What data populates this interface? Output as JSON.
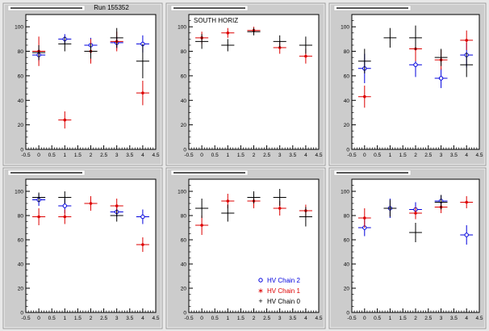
{
  "run_label": "Run 155352",
  "colors": {
    "chain2": "#0000dd",
    "chain1": "#dd0000",
    "chain0": "#000000",
    "pad_background": "#cccccc",
    "frame_background": "#ffffff"
  },
  "legend": {
    "placement": "bottom-right of pad 5",
    "entries": [
      {
        "label": "HV Chain 2",
        "color": "#0000dd",
        "marker": "open-circle"
      },
      {
        "label": "HV Chain 1",
        "color": "#dd0000",
        "marker": "star"
      },
      {
        "label": "HV Chain 0",
        "color": "#000000",
        "marker": "plus"
      }
    ]
  },
  "chart_data": [
    {
      "type": "scatter",
      "title": "",
      "annotation": "",
      "xlim": [
        -0.5,
        4.5
      ],
      "ylim": [
        0,
        110
      ],
      "x_ticks": [
        "-0.5",
        "0",
        "0.5",
        "1",
        "1.5",
        "2",
        "2.5",
        "3",
        "3.5",
        "4",
        "4.5"
      ],
      "y_ticks": [
        "0",
        "20",
        "40",
        "60",
        "80",
        "100"
      ],
      "series": [
        {
          "color": "#0000dd",
          "marker": "open-circle",
          "x": [
            0,
            1,
            2,
            3,
            4
          ],
          "y": [
            77,
            90,
            85,
            87,
            86
          ],
          "yerr": [
            5,
            4,
            6,
            5,
            7
          ]
        },
        {
          "color": "#dd0000",
          "marker": "star",
          "x": [
            0,
            1,
            2,
            3,
            4
          ],
          "y": [
            80,
            24,
            80,
            88,
            46
          ],
          "yerr": [
            12,
            7,
            10,
            8,
            10
          ]
        },
        {
          "color": "#000000",
          "marker": "plus",
          "x": [
            0,
            1,
            2,
            3,
            4
          ],
          "y": [
            79,
            86,
            80,
            91,
            72
          ],
          "yerr": [
            6,
            6,
            6,
            8,
            14
          ]
        }
      ]
    },
    {
      "type": "scatter",
      "title": "",
      "annotation": "SOUTH HORIZ",
      "xlim": [
        -0.5,
        4.5
      ],
      "ylim": [
        0,
        110
      ],
      "x_ticks": [
        "-0.5",
        "0",
        "0.5",
        "1",
        "1.5",
        "2",
        "2.5",
        "3",
        "3.5",
        "4",
        "4.5"
      ],
      "y_ticks": [
        "0",
        "20",
        "40",
        "60",
        "80",
        "100"
      ],
      "series": [
        {
          "color": "#dd0000",
          "marker": "star",
          "x": [
            0,
            1,
            2,
            3,
            4
          ],
          "y": [
            91,
            95,
            97,
            83,
            76
          ],
          "yerr": [
            5,
            4,
            3,
            5,
            6
          ]
        },
        {
          "color": "#000000",
          "marker": "plus",
          "x": [
            0,
            1,
            2,
            3,
            4
          ],
          "y": [
            88,
            85,
            96,
            88,
            85
          ],
          "yerr": [
            6,
            5,
            3,
            5,
            7
          ]
        }
      ]
    },
    {
      "type": "scatter",
      "title": "",
      "annotation": "",
      "xlim": [
        -0.5,
        4.5
      ],
      "ylim": [
        0,
        110
      ],
      "x_ticks": [
        "-0.5",
        "0",
        "0.5",
        "1",
        "1.5",
        "2",
        "2.5",
        "3",
        "3.5",
        "4",
        "4.5"
      ],
      "y_ticks": [
        "0",
        "20",
        "40",
        "60",
        "80",
        "100"
      ],
      "series": [
        {
          "color": "#0000dd",
          "marker": "open-circle",
          "x": [
            0,
            1,
            2,
            3,
            4
          ],
          "y": [
            66,
            null,
            69,
            58,
            77
          ],
          "yerr": [
            12,
            0,
            10,
            8,
            10
          ]
        },
        {
          "color": "#dd0000",
          "marker": "star",
          "x": [
            0,
            1,
            2,
            3,
            4
          ],
          "y": [
            43,
            null,
            82,
            73,
            89
          ],
          "yerr": [
            9,
            0,
            10,
            8,
            8
          ]
        },
        {
          "color": "#000000",
          "marker": "plus",
          "x": [
            0,
            1,
            2,
            3,
            4
          ],
          "y": [
            72,
            91,
            91,
            75,
            69
          ],
          "yerr": [
            10,
            8,
            10,
            7,
            10
          ]
        }
      ]
    },
    {
      "type": "scatter",
      "title": "",
      "annotation": "",
      "xlim": [
        -0.5,
        4.5
      ],
      "ylim": [
        0,
        110
      ],
      "x_ticks": [
        "-0.5",
        "0",
        "0.5",
        "1",
        "1.5",
        "2",
        "2.5",
        "3",
        "3.5",
        "4",
        "4.5"
      ],
      "y_ticks": [
        "0",
        "20",
        "40",
        "60",
        "80",
        "100"
      ],
      "series": [
        {
          "color": "#0000dd",
          "marker": "open-circle",
          "x": [
            0,
            1,
            2,
            3,
            4
          ],
          "y": [
            93,
            88,
            null,
            83,
            79
          ],
          "yerr": [
            5,
            6,
            0,
            4,
            6
          ]
        },
        {
          "color": "#dd0000",
          "marker": "star",
          "x": [
            0,
            1,
            2,
            3,
            4
          ],
          "y": [
            79,
            79,
            90,
            88,
            56
          ],
          "yerr": [
            7,
            6,
            6,
            6,
            6
          ]
        },
        {
          "color": "#000000",
          "marker": "plus",
          "x": [
            0,
            1,
            2,
            3,
            4
          ],
          "y": [
            95,
            95,
            null,
            80,
            null
          ],
          "yerr": [
            4,
            5,
            0,
            5,
            0
          ]
        }
      ]
    },
    {
      "type": "scatter",
      "title": "",
      "annotation": "",
      "xlim": [
        -0.5,
        4.5
      ],
      "ylim": [
        0,
        110
      ],
      "x_ticks": [
        "-0.5",
        "0",
        "0.5",
        "1",
        "1.5",
        "2",
        "2.5",
        "3",
        "3.5",
        "4",
        "4.5"
      ],
      "y_ticks": [
        "0",
        "20",
        "40",
        "60",
        "80",
        "100"
      ],
      "series": [
        {
          "color": "#dd0000",
          "marker": "star",
          "x": [
            0,
            1,
            2,
            3,
            4
          ],
          "y": [
            72,
            92,
            92,
            86,
            84
          ],
          "yerr": [
            8,
            6,
            6,
            6,
            5
          ]
        },
        {
          "color": "#000000",
          "marker": "plus",
          "x": [
            0,
            1,
            2,
            3,
            4
          ],
          "y": [
            86,
            82,
            95,
            95,
            79
          ],
          "yerr": [
            8,
            7,
            5,
            7,
            8
          ]
        }
      ]
    },
    {
      "type": "scatter",
      "title": "",
      "annotation": "",
      "xlim": [
        -0.5,
        4.5
      ],
      "ylim": [
        0,
        110
      ],
      "x_ticks": [
        "-0.5",
        "0",
        "0.5",
        "1",
        "1.5",
        "2",
        "2.5",
        "3",
        "3.5",
        "4",
        "4.5"
      ],
      "y_ticks": [
        "0",
        "20",
        "40",
        "60",
        "80",
        "100"
      ],
      "series": [
        {
          "color": "#0000dd",
          "marker": "open-circle",
          "x": [
            0,
            1,
            2,
            3,
            4
          ],
          "y": [
            70,
            86,
            85,
            92,
            64
          ],
          "yerr": [
            7,
            8,
            6,
            5,
            8
          ]
        },
        {
          "color": "#dd0000",
          "marker": "star",
          "x": [
            0,
            1,
            2,
            3,
            4
          ],
          "y": [
            78,
            null,
            82,
            87,
            91
          ],
          "yerr": [
            8,
            0,
            5,
            5,
            5
          ]
        },
        {
          "color": "#000000",
          "marker": "plus",
          "x": [
            0,
            1,
            2,
            3,
            4
          ],
          "y": [
            null,
            86,
            66,
            91,
            null
          ],
          "yerr": [
            0,
            7,
            8,
            6,
            0
          ]
        }
      ]
    }
  ]
}
